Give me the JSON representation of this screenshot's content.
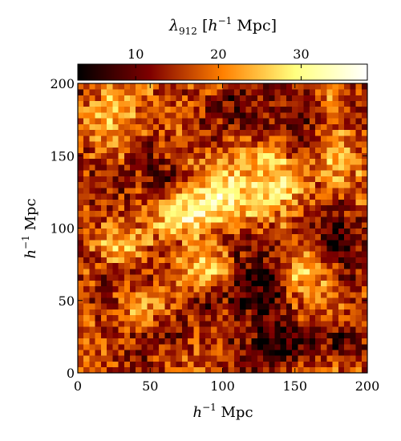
{
  "chart_data": {
    "type": "heatmap",
    "colormap": "afmhot",
    "colorbar": {
      "title": "λ912 [h⁻¹ Mpc]",
      "title_main": "λ",
      "title_sub": "912",
      "title_bracket_open": " [",
      "title_h": "h",
      "title_exp": "−1",
      "title_unit": " Mpc]",
      "range": [
        3,
        38
      ],
      "ticks": [
        10,
        20,
        30
      ],
      "tick_labels": [
        "10",
        "20",
        "30"
      ],
      "placement": "top"
    },
    "x_axis": {
      "label_h": "h",
      "label_exp": "−1",
      "label_unit": " Mpc",
      "range": [
        0,
        200
      ],
      "ticks": [
        0,
        50,
        100,
        150,
        200
      ],
      "tick_labels": [
        "0",
        "50",
        "100",
        "150",
        "200"
      ]
    },
    "y_axis": {
      "label_h": "h",
      "label_exp": "−1",
      "label_unit": " Mpc",
      "range": [
        0,
        200
      ],
      "ticks": [
        0,
        50,
        100,
        150,
        200
      ],
      "tick_labels": [
        "0",
        "50",
        "100",
        "150",
        "200"
      ]
    },
    "grid": {
      "columns": 50,
      "rows": 50,
      "cell_size": 4
    },
    "features": {
      "base_value": 16,
      "noise_amplitude": 9,
      "bright_regions": [
        {
          "x": 98,
          "y": 125,
          "sx": 14,
          "sy": 12,
          "amp": 15
        },
        {
          "x": 135,
          "y": 130,
          "sx": 13,
          "sy": 16,
          "amp": 14
        },
        {
          "x": 92,
          "y": 72,
          "sx": 16,
          "sy": 12,
          "amp": 12
        },
        {
          "x": 75,
          "y": 108,
          "sx": 14,
          "sy": 12,
          "amp": 10
        },
        {
          "x": 45,
          "y": 48,
          "sx": 14,
          "sy": 12,
          "amp": 9
        },
        {
          "x": 160,
          "y": 70,
          "sx": 12,
          "sy": 12,
          "amp": 9
        },
        {
          "x": 30,
          "y": 178,
          "sx": 14,
          "sy": 10,
          "amp": 7
        },
        {
          "x": 178,
          "y": 148,
          "sx": 10,
          "sy": 12,
          "amp": 7
        },
        {
          "x": 30,
          "y": 90,
          "sx": 12,
          "sy": 12,
          "amp": 6
        },
        {
          "x": 110,
          "y": 30,
          "sx": 12,
          "sy": 10,
          "amp": 6
        }
      ],
      "dark_regions": [
        {
          "x": 118,
          "y": 55,
          "sx": 18,
          "sy": 20,
          "amp": 12
        },
        {
          "x": 135,
          "y": 20,
          "sx": 14,
          "sy": 12,
          "amp": 9
        },
        {
          "x": 185,
          "y": 85,
          "sx": 16,
          "sy": 22,
          "amp": 10
        },
        {
          "x": 50,
          "y": 135,
          "sx": 14,
          "sy": 14,
          "amp": 8
        },
        {
          "x": 115,
          "y": 178,
          "sx": 22,
          "sy": 12,
          "amp": 7
        },
        {
          "x": 20,
          "y": 60,
          "sx": 12,
          "sy": 14,
          "amp": 6
        },
        {
          "x": 185,
          "y": 20,
          "sx": 12,
          "sy": 12,
          "amp": 6
        }
      ]
    }
  }
}
